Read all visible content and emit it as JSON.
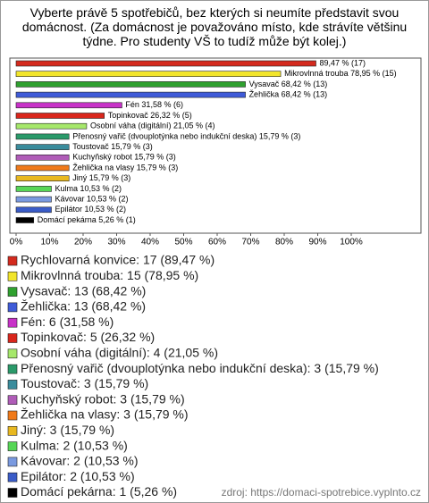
{
  "chart_data": {
    "type": "bar",
    "orientation": "horizontal",
    "title": "Vyberte právě 5 spotřebičů, bez kterých si neumíte představit svou domácnost. (Za domácnost je považováno místo, kde strávíte většinu týdne. Pro studenty VŠ to tudíž může být kolej.)",
    "categories": [
      "Rychlovarná konvice",
      "Mikrovlnná trouba",
      "Vysavač",
      "Žehlička",
      "Fén",
      "Topinkovač",
      "Osobní váha (digitální)",
      "Přenosný vařič (dvouplotýnka nebo indukční deska)",
      "Toustovač",
      "Kuchyňský robot",
      "Žehlička na vlasy",
      "Jiný",
      "Kulma",
      "Kávovar",
      "Epilátor",
      "Domácí pekárna"
    ],
    "values": [
      89.47,
      78.95,
      68.42,
      68.42,
      31.58,
      26.32,
      21.05,
      15.79,
      15.79,
      15.79,
      15.79,
      15.79,
      10.53,
      10.53,
      10.53,
      5.26
    ],
    "value_labels": [
      "89,47 % (17)",
      "Mikrovlnná trouba 78,95 % (15)",
      "Vysavač 68,42 % (13)",
      "Žehlička 68,42 % (13)",
      "Fén 31,58 % (6)",
      "Topinkovač 26,32 % (5)",
      "Osobní váha (digitální) 21,05 % (4)",
      "Přenosný vařič (dvouplotýnka nebo indukční deska) 15,79 % (3)",
      "Toustovač 15,79 % (3)",
      "Kuchyňský robot 15,79 % (3)",
      "Žehlička na vlasy 15,79 % (3)",
      "Jiný 15,79 % (3)",
      "Kulma 10,53 % (2)",
      "Kávovar 10,53 % (2)",
      "Epilátor 10,53 % (2)",
      "Domácí pekárna 5,26 % (1)"
    ],
    "colors": [
      "#d42a1e",
      "#f2e52a",
      "#2fa12f",
      "#3f5bd8",
      "#c832c8",
      "#d9261c",
      "#a6e86b",
      "#2a9a6a",
      "#3a8c9c",
      "#b05cb8",
      "#f07a1a",
      "#e8b820",
      "#56d656",
      "#7a9ae0",
      "#3a5cc8",
      "#000000"
    ],
    "legend_labels": [
      "Rychlovarná konvice: 17 (89,47 %)",
      "Mikrovlnná trouba: 15 (78,95 %)",
      "Vysavač: 13 (68,42 %)",
      "Žehlička: 13 (68,42 %)",
      "Fén: 6 (31,58 %)",
      "Topinkovač: 5 (26,32 %)",
      "Osobní váha (digitální): 4 (21,05 %)",
      "Přenosný vařič (dvouplotýnka nebo indukční deska): 3 (15,79 %)",
      "Toustovač: 3 (15,79 %)",
      "Kuchyňský robot: 3 (15,79 %)",
      "Žehlička na vlasy: 3 (15,79 %)",
      "Jiný: 3 (15,79 %)",
      "Kulma: 2 (10,53 %)",
      "Kávovar: 2 (10,53 %)",
      "Epilátor: 2 (10,53 %)",
      "Domácí pekárna: 1 (5,26 %)"
    ],
    "xlim": [
      0,
      100
    ],
    "xticks": [
      {
        "value": 0,
        "label": "0%"
      },
      {
        "value": 10,
        "label": "10%"
      },
      {
        "value": 20,
        "label": "20%"
      },
      {
        "value": 30,
        "label": "30%"
      },
      {
        "value": 40,
        "label": "40%"
      },
      {
        "value": 50,
        "label": "50%"
      },
      {
        "value": 60,
        "label": "60%"
      },
      {
        "value": 70,
        "label": "70%"
      },
      {
        "value": 80,
        "label": "80%"
      },
      {
        "value": 90,
        "label": "90%"
      },
      {
        "value": 100,
        "label": "100%"
      }
    ],
    "source": "zdroj: https://domaci-spotrebice.vyplnto.cz"
  }
}
